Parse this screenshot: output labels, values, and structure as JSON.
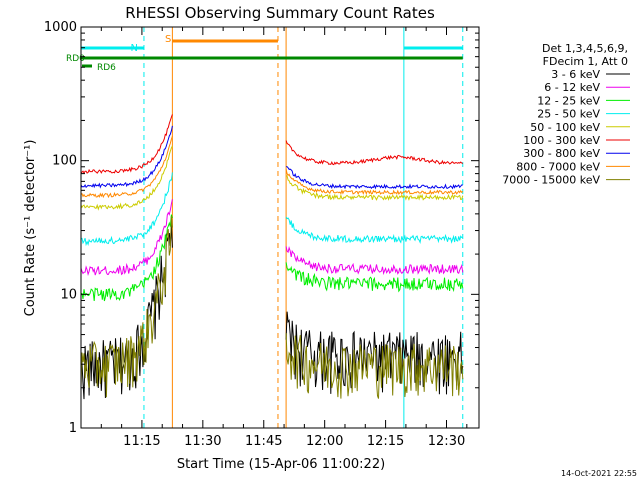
{
  "chart_data": {
    "type": "line",
    "title": "RHESSI Observing Summary Count Rates",
    "xlabel": "Start Time (15-Apr-06 11:00:22)",
    "ylabel": "Count Rate (s⁻¹ detector⁻¹)",
    "yscale": "log",
    "ylim": [
      1,
      1000
    ],
    "xlim_minutes": [
      0,
      98
    ],
    "x_ticks": [
      {
        "m": 15,
        "label": "11:15"
      },
      {
        "m": 30,
        "label": "11:30"
      },
      {
        "m": 45,
        "label": "11:45"
      },
      {
        "m": 60,
        "label": "12:00"
      },
      {
        "m": 75,
        "label": "12:15"
      },
      {
        "m": 90,
        "label": "12:30"
      }
    ],
    "y_ticks": [
      {
        "v": 1,
        "label": "1"
      },
      {
        "v": 10,
        "label": "10"
      },
      {
        "v": 100,
        "label": "100"
      },
      {
        "v": 1000,
        "label": "1000"
      }
    ],
    "legend": {
      "header": [
        "Det 1,3,4,5,6,9,",
        "FDecim 1, Att 0"
      ],
      "entries": [
        "3 - 6 keV",
        "6 - 12 keV",
        "12 - 25 keV",
        "25 - 50 keV",
        "50 - 100 keV",
        "100 - 300 keV",
        "300 - 800 keV",
        "800 - 7000 keV",
        "7000 - 15000 keV"
      ],
      "colors": [
        "#000000",
        "#ee00ee",
        "#00ee00",
        "#00eeee",
        "#cccc00",
        "#ee0000",
        "#0000ee",
        "#ff8800",
        "#808000"
      ]
    },
    "segments": [
      [
        0,
        22.5
      ],
      [
        50.5,
        94
      ]
    ],
    "series": [
      {
        "name": "3 - 6 keV",
        "color": "#000000",
        "pre": 3,
        "post": 3.5,
        "peak": 32,
        "noise": 0.5
      },
      {
        "name": "6 - 12 keV",
        "color": "#ee00ee",
        "pre": 15,
        "post": 15.5,
        "peak": 50,
        "noise": 0.08
      },
      {
        "name": "12 - 25 keV",
        "color": "#00ee00",
        "pre": 10,
        "post": 12,
        "peak": 40,
        "noise": 0.12
      },
      {
        "name": "25 - 50 keV",
        "color": "#00eeee",
        "pre": 25,
        "post": 26,
        "peak": 80,
        "noise": 0.06
      },
      {
        "name": "50 - 100 keV",
        "color": "#cccc00",
        "pre": 45,
        "post": 53,
        "peak": 130,
        "noise": 0.04
      },
      {
        "name": "100 - 300 keV",
        "color": "#ee0000",
        "pre": 83,
        "post": 95,
        "peak": 220,
        "noise": 0.03
      },
      {
        "name": "300 - 800 keV",
        "color": "#0000ee",
        "pre": 65,
        "post": 64,
        "peak": 180,
        "noise": 0.03
      },
      {
        "name": "800 - 7000 keV",
        "color": "#ff8800",
        "pre": 55,
        "post": 58,
        "peak": 150,
        "noise": 0.03
      },
      {
        "name": "7000 - 15000 keV",
        "color": "#808000",
        "pre": 3,
        "post": 3,
        "peak": 30,
        "noise": 0.45
      }
    ],
    "annotations": {
      "rd0_label": "RD0",
      "rd6_label": "RD6",
      "s_label": "S",
      "n_label": "N",
      "date_stamp": "14-Oct-2021 22:55"
    }
  }
}
